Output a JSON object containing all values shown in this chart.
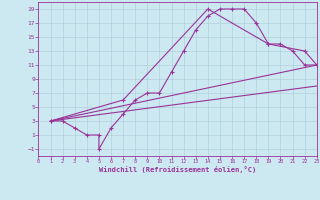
{
  "xlabel": "Windchill (Refroidissement éolien,°C)",
  "bg_color": "#cce8f0",
  "line_color": "#993399",
  "xlim": [
    0,
    23
  ],
  "ylim": [
    -2,
    20
  ],
  "xticks": [
    0,
    1,
    2,
    3,
    4,
    5,
    6,
    7,
    8,
    9,
    10,
    11,
    12,
    13,
    14,
    15,
    16,
    17,
    18,
    19,
    20,
    21,
    22,
    23
  ],
  "yticks": [
    -1,
    1,
    3,
    5,
    7,
    9,
    11,
    13,
    15,
    17,
    19
  ],
  "series1_x": [
    1,
    2,
    3,
    4,
    5,
    5,
    6,
    7,
    8,
    9,
    10,
    11,
    12,
    13,
    14,
    15,
    16,
    17,
    18,
    19,
    20,
    21,
    22,
    23
  ],
  "series1_y": [
    3,
    3,
    2,
    1,
    1,
    -1,
    2,
    4,
    6,
    7,
    7,
    10,
    13,
    16,
    18,
    19,
    19,
    19,
    17,
    14,
    14,
    13,
    11,
    11
  ],
  "series2_x": [
    1,
    7,
    14,
    19,
    22,
    23
  ],
  "series2_y": [
    3,
    6,
    19,
    14,
    13,
    11
  ],
  "series3_x": [
    1,
    23
  ],
  "series3_y": [
    3,
    11
  ],
  "series4_x": [
    1,
    23
  ],
  "series4_y": [
    3,
    8
  ]
}
